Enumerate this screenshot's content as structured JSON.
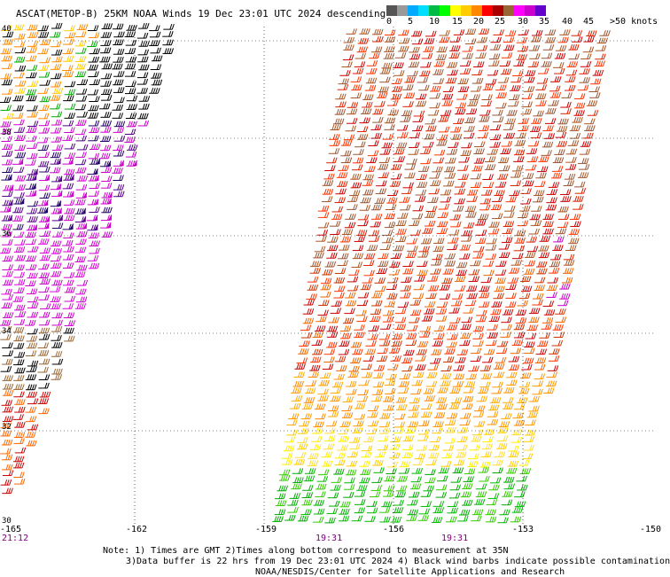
{
  "header": {
    "title": "ASCAT(METOP-B) 25KM NOAA Winds 19 Dec 23:01 UTC 2024 descending"
  },
  "legend": {
    "colors": [
      "#555555",
      "#999999",
      "#00aaff",
      "#00ddff",
      "#00bb44",
      "#00ff00",
      "#ffff00",
      "#ffcc00",
      "#ff8800",
      "#ff0000",
      "#aa0000",
      "#996633",
      "#ff00ff",
      "#cc00cc",
      "#6600cc"
    ],
    "labels": [
      "0",
      "5",
      "10",
      "15",
      "20",
      "25",
      "30",
      "35",
      "40",
      "45",
      ">50 knots"
    ]
  },
  "map": {
    "lon_labels": [
      "-165",
      "-162",
      "-159",
      "-156",
      "-153",
      "-150"
    ],
    "lat_labels": [
      "40",
      "38",
      "36",
      "34",
      "32",
      "30"
    ],
    "time_labels": [
      "21:12",
      "19:31",
      "19:31"
    ]
  },
  "footer": {
    "line1": "Note: 1) Times are GMT 2)Times along bottom correspond to measurement at 35N",
    "line2": "3)Data buffer is 22 hrs from 19 Dec 23:01 UTC 2024 4) Black wind barbs indicate possible contamination",
    "line3": "NOAA/NESDIS/Center for Satellite Applications and Research"
  }
}
